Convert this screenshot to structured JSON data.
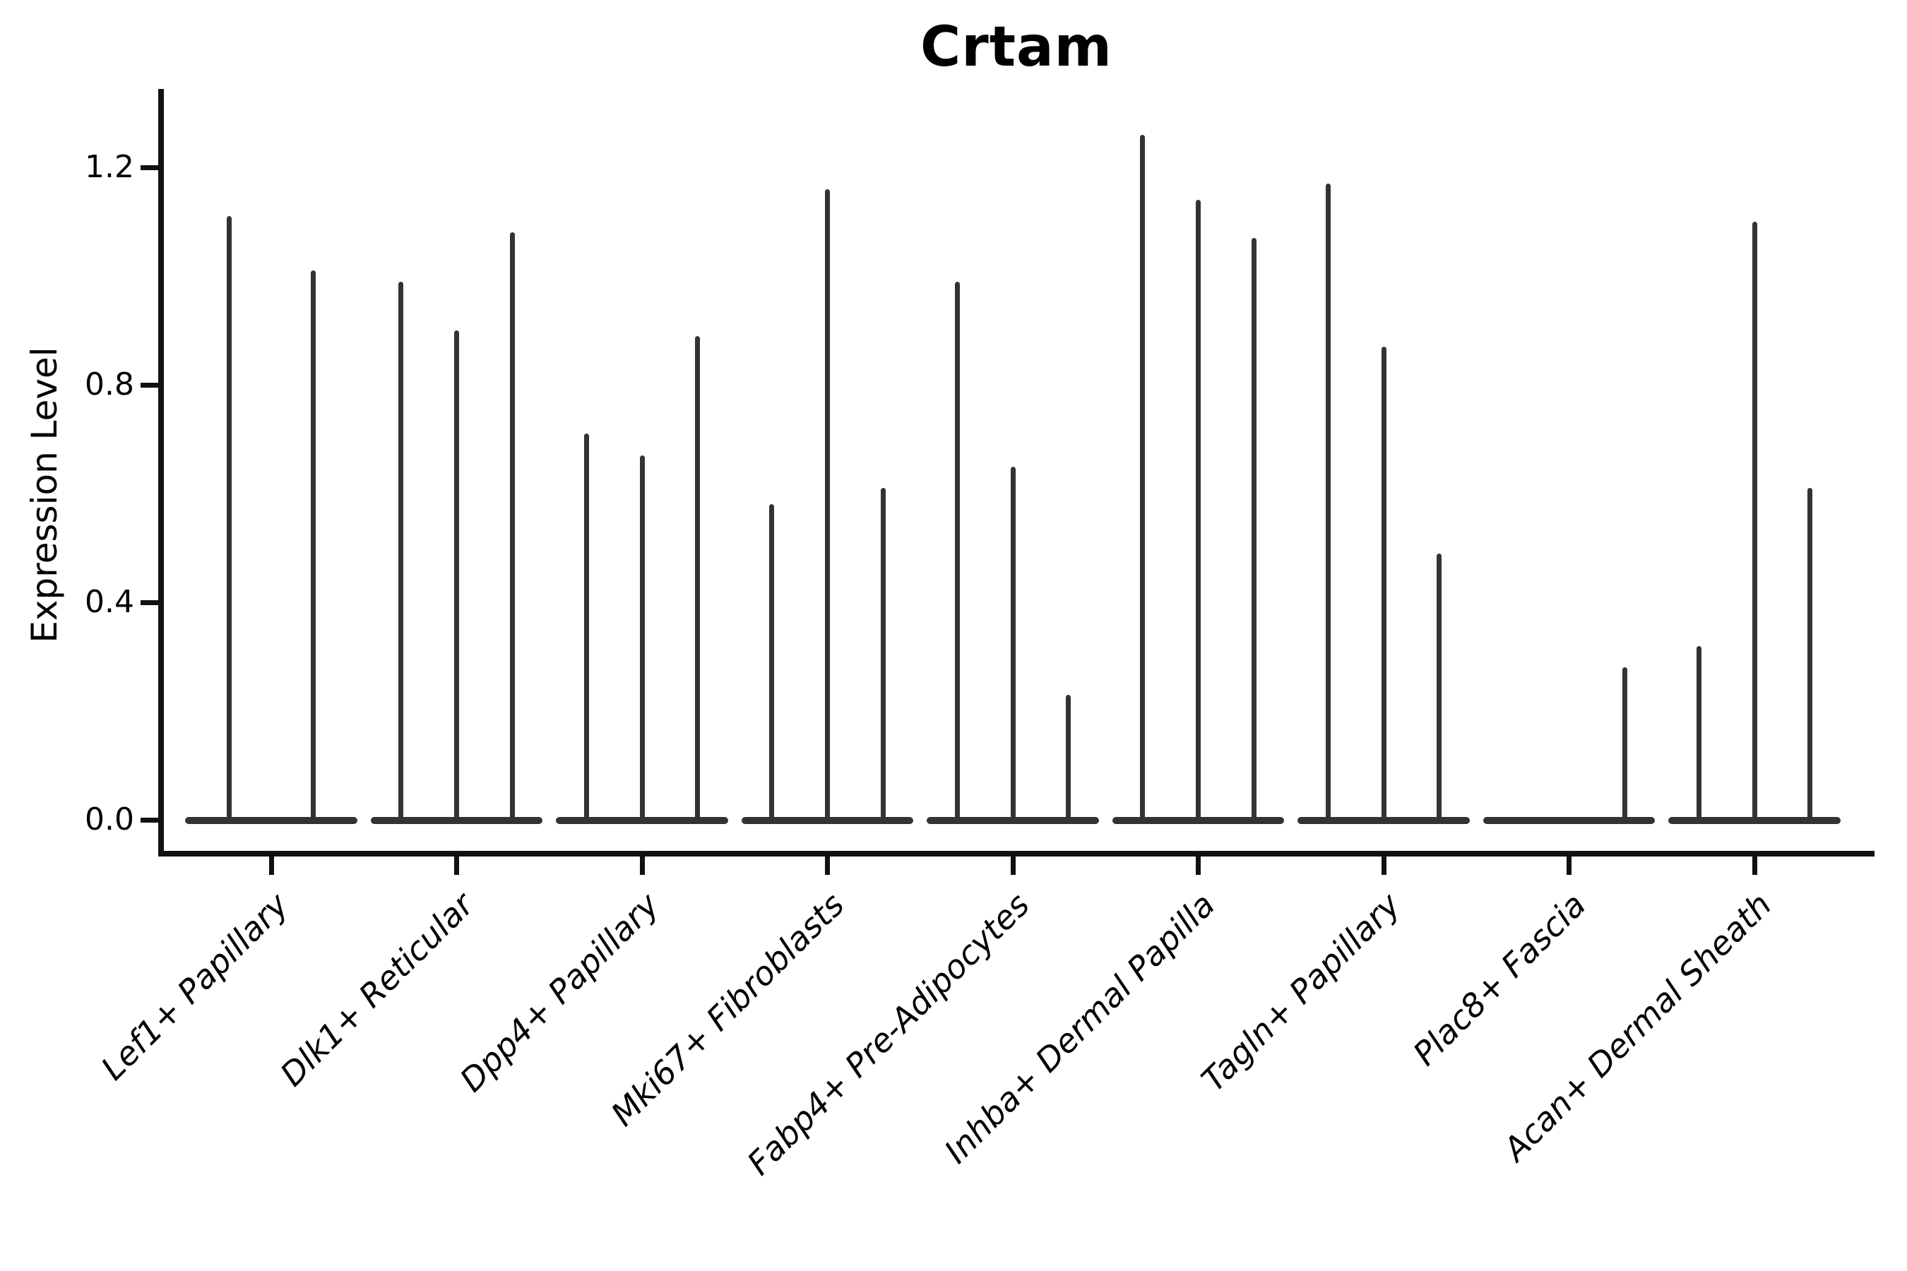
{
  "title": "Crtam",
  "y_axis": {
    "label": "Expression Level",
    "tick_labels": [
      "0.0",
      "0.4",
      "0.8",
      "1.2"
    ]
  },
  "chart_data": {
    "type": "violin",
    "title": "Crtam",
    "xlabel": "",
    "ylabel": "Expression Level",
    "ylim": [
      -0.07,
      1.34
    ],
    "yticks": [
      0.0,
      0.4,
      0.8,
      1.2
    ],
    "grid": false,
    "legend_position": "none",
    "style_note": "black-and-white violin plot; each violin collapses to a wide flat base at 0 with a thin vertical spike rising to its maximum expression value",
    "categories": [
      "Lef1+ Papillary",
      "Dlk1+ Reticular",
      "Dpp4+ Papillary",
      "Mki67+ Fibroblasts",
      "Fabp4+ Pre-Adipocytes",
      "Inhba+ Dermal Papilla",
      "Tagln+ Papillary",
      "Plac8+ Fascia",
      "Acan+ Dermal Sheath"
    ],
    "series": [
      {
        "category": "Lef1+ Papillary",
        "violin_max_values": [
          1.11,
          1.01
        ]
      },
      {
        "category": "Dlk1+ Reticular",
        "violin_max_values": [
          0.99,
          0.9,
          1.08
        ]
      },
      {
        "category": "Dpp4+ Papillary",
        "violin_max_values": [
          0.71,
          0.67,
          0.89
        ]
      },
      {
        "category": "Mki67+ Fibroblasts",
        "violin_max_values": [
          0.58,
          1.16,
          0.61
        ]
      },
      {
        "category": "Fabp4+ Pre-Adipocytes",
        "violin_max_values": [
          0.99,
          0.65,
          0.23
        ]
      },
      {
        "category": "Inhba+ Dermal Papilla",
        "violin_max_values": [
          1.26,
          1.14,
          1.07
        ]
      },
      {
        "category": "Tagln+ Papillary",
        "violin_max_values": [
          1.17,
          0.87,
          0.49
        ]
      },
      {
        "category": "Plac8+ Fascia",
        "violin_max_values": [
          0.0,
          0.0,
          0.28
        ]
      },
      {
        "category": "Acan+ Dermal Sheath",
        "violin_max_values": [
          0.32,
          1.1,
          0.61
        ]
      }
    ]
  }
}
